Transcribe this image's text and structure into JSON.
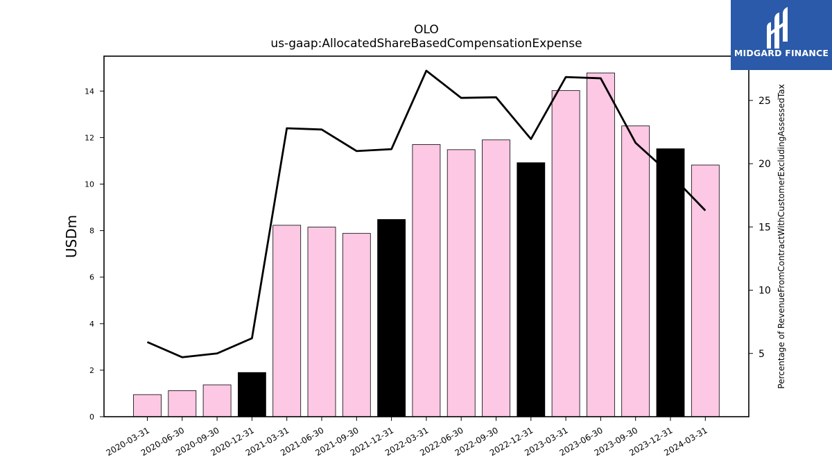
{
  "branding": {
    "logo_text": "MIDGARD FINANCE",
    "logo_color": "#2a5aa9"
  },
  "chart_data": {
    "type": "bar",
    "title": "OLO",
    "subtitle": "us-gaap:AllocatedShareBasedCompensationExpense",
    "ylabel": "USDm",
    "y2label": "Percentage of RevenueFromContractWithCustomerExcludingAssessedTax",
    "ylim": [
      0,
      15.5
    ],
    "y2lim": [
      0,
      28.5
    ],
    "yticks": [
      0,
      2,
      4,
      6,
      8,
      10,
      12,
      14
    ],
    "y2ticks": [
      5,
      10,
      15,
      20,
      25
    ],
    "categories": [
      "2020-03-31",
      "2020-06-30",
      "2020-09-30",
      "2020-12-31",
      "2021-03-31",
      "2021-06-30",
      "2021-09-30",
      "2021-12-31",
      "2022-03-31",
      "2022-06-30",
      "2022-09-30",
      "2022-12-31",
      "2023-03-31",
      "2023-06-30",
      "2023-09-30",
      "2023-12-31",
      "2024-03-31"
    ],
    "bar_values": [
      0.95,
      1.12,
      1.37,
      1.9,
      8.23,
      8.15,
      7.88,
      8.48,
      11.7,
      11.48,
      11.9,
      10.92,
      14.02,
      14.78,
      12.5,
      11.52,
      10.82
    ],
    "bar_colors": [
      "#fcc8e4",
      "#fcc8e4",
      "#fcc8e4",
      "#000000",
      "#fcc8e4",
      "#fcc8e4",
      "#fcc8e4",
      "#000000",
      "#fcc8e4",
      "#fcc8e4",
      "#fcc8e4",
      "#000000",
      "#fcc8e4",
      "#fcc8e4",
      "#fcc8e4",
      "#000000",
      "#fcc8e4"
    ],
    "line_values": [
      5.9,
      4.7,
      5.0,
      6.2,
      22.8,
      22.7,
      21.0,
      21.15,
      27.35,
      25.2,
      25.25,
      21.95,
      26.85,
      26.75,
      21.65,
      19.15,
      16.3
    ],
    "line_color": "#000000",
    "grid": false,
    "legend": "none"
  }
}
